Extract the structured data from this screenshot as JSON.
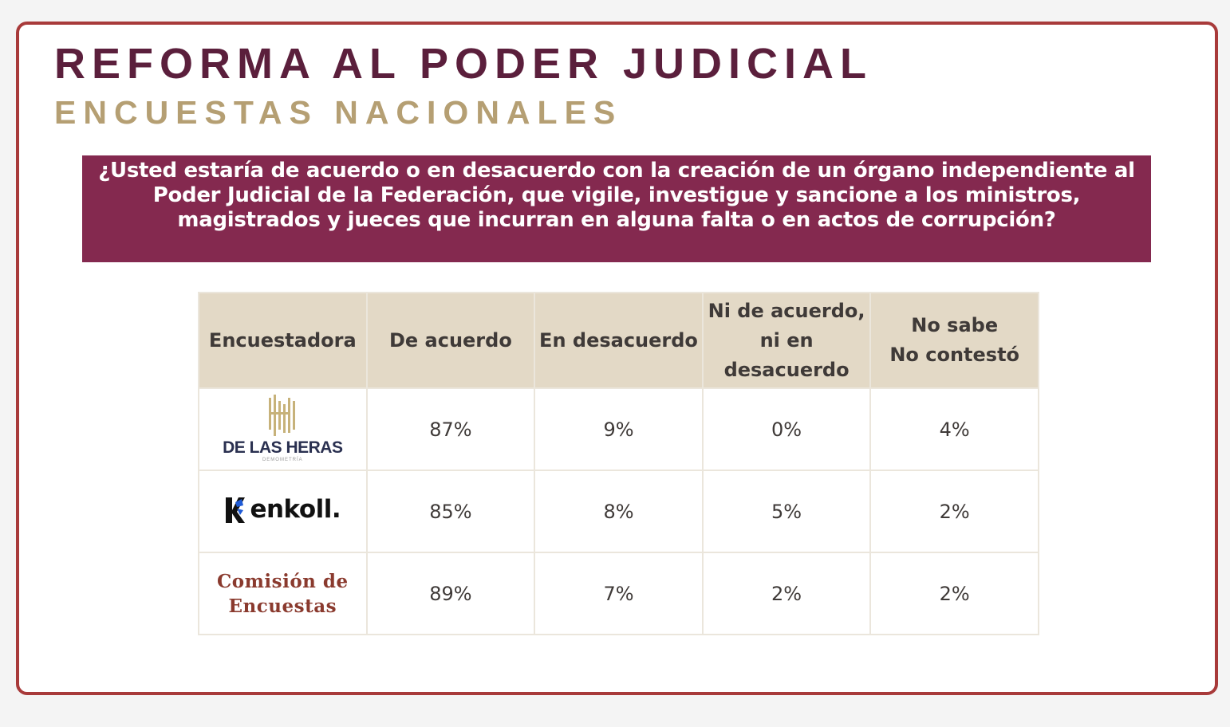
{
  "header": {
    "title": "REFORMA AL PODER JUDICIAL",
    "subtitle": "ENCUESTAS NACIONALES"
  },
  "question": "¿Usted estaría de acuerdo o en desacuerdo con la creación de un órgano independiente al Poder Judicial de la Federación, que vigile, investigue y sancione a los ministros, magistrados y jueces que incurran en alguna falta o en actos de corrupción?",
  "table": {
    "headers": {
      "pollster": "Encuestadora",
      "agree": "De acuerdo",
      "disagree": "En desacuerdo",
      "neither_l1": "Ni de acuerdo,",
      "neither_l2": "ni en",
      "neither_l3": "desacuerdo",
      "nsnc_l1": "No sabe",
      "nsnc_l2": "No contestó"
    },
    "rows": [
      {
        "pollster": "DE LAS HERAS",
        "pollster_sub": "DEMOMETRÍA",
        "agree": "87%",
        "disagree": "9%",
        "neither": "0%",
        "nsnc": "4%"
      },
      {
        "pollster": "enkoll.",
        "agree": "85%",
        "disagree": "8%",
        "neither": "5%",
        "nsnc": "2%"
      },
      {
        "pollster_l1": "Comisión de",
        "pollster_l2": "Encuestas",
        "agree": "89%",
        "disagree": "7%",
        "neither": "2%",
        "nsnc": "2%"
      }
    ]
  },
  "colors": {
    "frame": "#a83a3a",
    "title": "#5b1f3c",
    "subtitle": "#b59f73",
    "question_bg": "#84294f",
    "header_bg": "#e3d9c6",
    "heras_gold": "#c7b27a",
    "enkoll_blue": "#1f5bd6"
  }
}
